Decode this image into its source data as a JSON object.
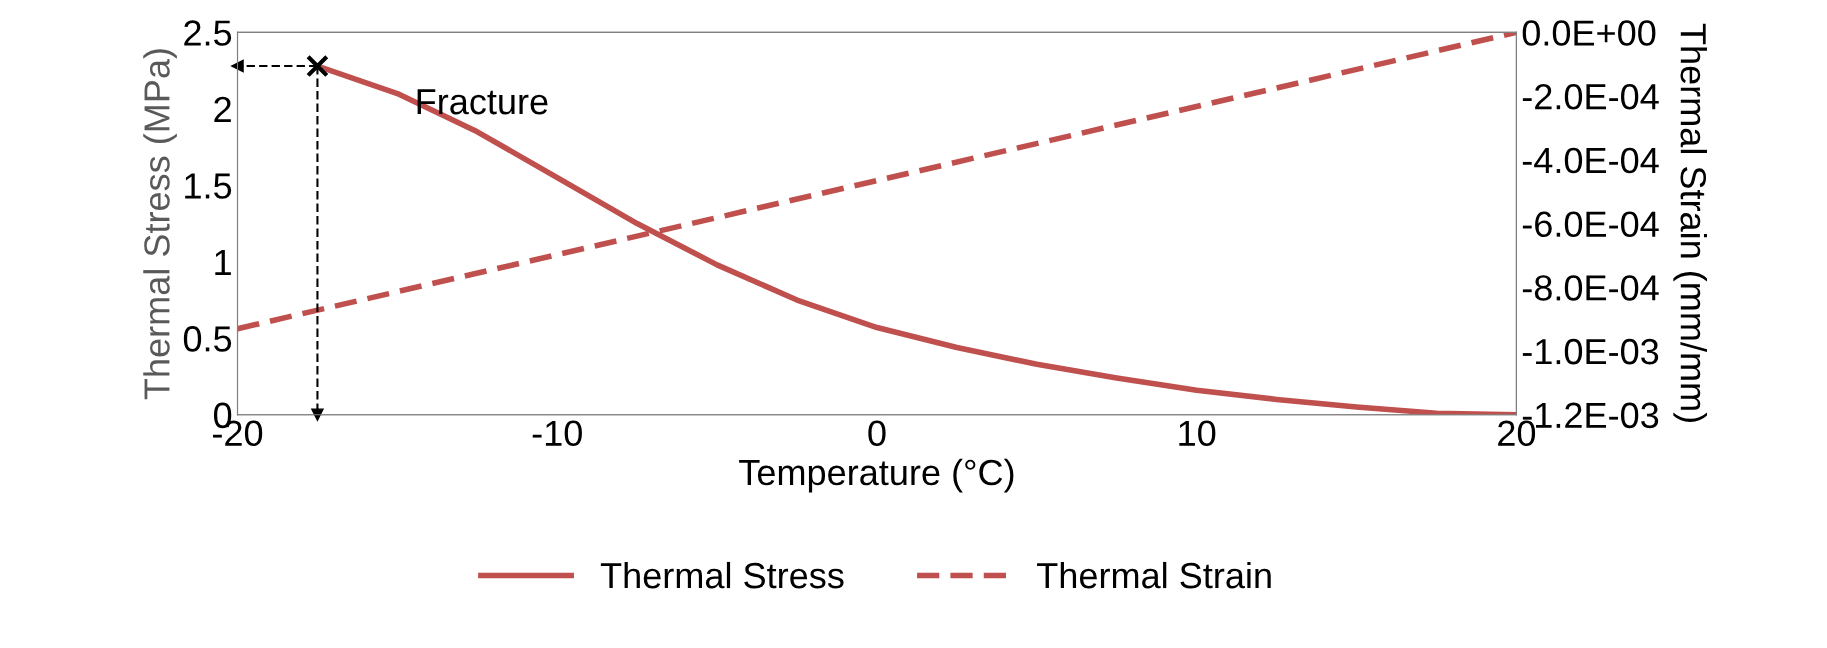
{
  "chart_data": {
    "type": "line",
    "xlabel": "Temperature (°C)",
    "ylabel": "Thermal Stress (MPa)",
    "y2label": "Thermal Strain (mm/mm)",
    "xlim": [
      -20,
      20
    ],
    "xticks": [
      -20,
      -10,
      0,
      10,
      20
    ],
    "ylim": [
      0,
      2.5
    ],
    "yticks": [
      0,
      0.5,
      1,
      1.5,
      2,
      2.5
    ],
    "y2lim": [
      -0.0012,
      0
    ],
    "y2ticks": [
      {
        "value": -0.0012,
        "label": "-1.2E-03"
      },
      {
        "value": -0.001,
        "label": "-1.0E-03"
      },
      {
        "value": -0.0008,
        "label": "-8.0E-04"
      },
      {
        "value": -0.0006,
        "label": "-6.0E-04"
      },
      {
        "value": -0.0004,
        "label": "-4.0E-04"
      },
      {
        "value": -0.0002,
        "label": "-2.0E-04"
      },
      {
        "value": 0,
        "label": "0.0E+00"
      }
    ],
    "series": [
      {
        "name": "Thermal Stress",
        "color": "#c0504d",
        "line_style": "solid",
        "x": [
          -17.5,
          -15,
          -12.5,
          -10,
          -7.5,
          -5,
          -2.5,
          0,
          2.5,
          5,
          7.5,
          10,
          12.5,
          15,
          17.5,
          20
        ],
        "values": [
          2.28,
          2.1,
          1.85,
          1.55,
          1.25,
          0.98,
          0.75,
          0.57,
          0.44,
          0.33,
          0.24,
          0.16,
          0.1,
          0.05,
          0.01,
          0
        ]
      },
      {
        "name": "Thermal Strain",
        "color": "#c0504d",
        "line_style": "dashed",
        "axis": "y2",
        "x": [
          -20,
          20
        ],
        "values": [
          -0.00093,
          0
        ]
      },
      {
        "color": "#000000",
        "line_style": "dashed",
        "x": [
          -17.5,
          -17.5
        ],
        "values": [
          2.28,
          0
        ]
      },
      {
        "color": "#000000",
        "line_style": "dashed",
        "x": [
          -17.5,
          -20
        ],
        "values": [
          2.28,
          2.28
        ]
      },
      {
        "type": "scatter",
        "color": "#000000",
        "marker": "cross",
        "x": [
          -17.5
        ],
        "values": [
          2.28
        ]
      }
    ],
    "annotations": [
      {
        "text": "Fracture",
        "x": -17.5,
        "y": 2.28
      }
    ],
    "grid": false,
    "legend": "bottom"
  }
}
